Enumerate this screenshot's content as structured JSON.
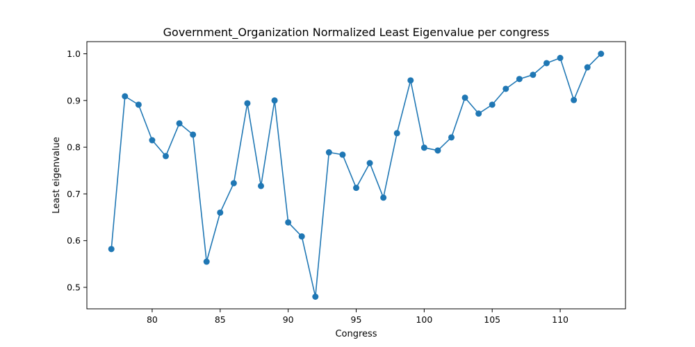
{
  "chart_data": {
    "type": "line",
    "title": "Government_Organization Normalized Least Eigenvalue per congress",
    "xlabel": "Congress",
    "ylabel": "Least eigenvalue",
    "xlim": [
      75.2,
      114.8
    ],
    "ylim": [
      0.454,
      1.026
    ],
    "xticks": [
      80,
      85,
      90,
      95,
      100,
      105,
      110
    ],
    "xtick_labels": [
      "80",
      "85",
      "90",
      "95",
      "100",
      "105",
      "110"
    ],
    "yticks": [
      0.5,
      0.6,
      0.7,
      0.8,
      0.9,
      1.0
    ],
    "ytick_labels": [
      "0.5",
      "0.6",
      "0.7",
      "0.8",
      "0.9",
      "1.0"
    ],
    "grid": false,
    "color": "#1f77b4",
    "marker": "circle",
    "x": [
      77,
      78,
      79,
      80,
      81,
      82,
      83,
      84,
      85,
      86,
      87,
      88,
      89,
      90,
      91,
      92,
      93,
      94,
      95,
      96,
      97,
      98,
      99,
      100,
      101,
      102,
      103,
      104,
      105,
      106,
      107,
      108,
      109,
      110,
      111,
      112,
      113
    ],
    "y": [
      0.582,
      0.909,
      0.891,
      0.815,
      0.781,
      0.851,
      0.827,
      0.555,
      0.66,
      0.723,
      0.894,
      0.717,
      0.9,
      0.639,
      0.609,
      0.48,
      0.789,
      0.784,
      0.713,
      0.766,
      0.692,
      0.83,
      0.943,
      0.799,
      0.793,
      0.821,
      0.906,
      0.872,
      0.891,
      0.925,
      0.946,
      0.955,
      0.98,
      0.991,
      0.901,
      0.971,
      1.0
    ]
  }
}
